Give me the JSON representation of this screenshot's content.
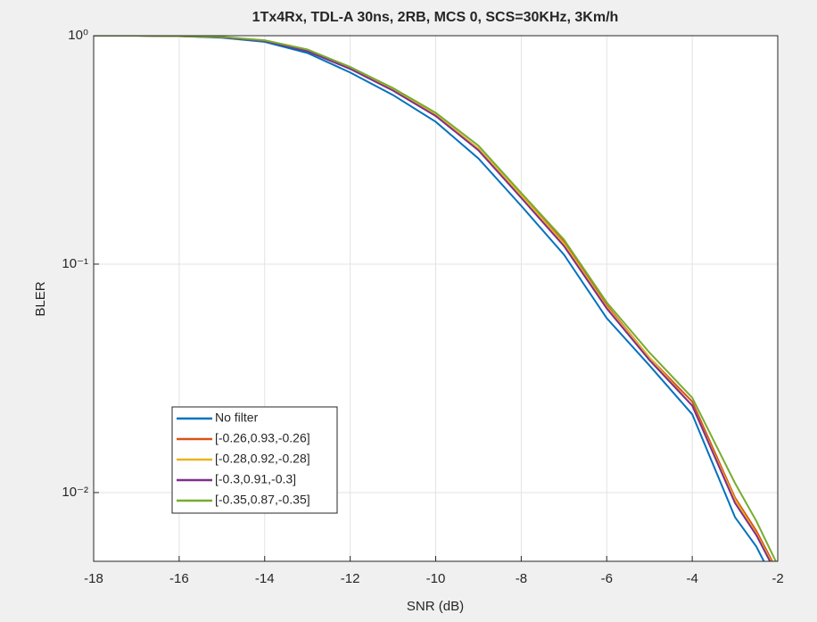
{
  "chart_data": {
    "type": "line",
    "title": "1Tx4Rx, TDL-A 30ns, 2RB, MCS 0, SCS=30KHz, 3Km/h",
    "xlabel": "SNR (dB)",
    "ylabel": "BLER",
    "x": [
      -18,
      -17,
      -16,
      -15,
      -14,
      -13,
      -12,
      -11,
      -10,
      -9,
      -8,
      -7,
      -6,
      -5,
      -4,
      -3,
      -2.5,
      -2
    ],
    "series": [
      {
        "name": "No filter",
        "color": "#0072BD",
        "values": [
          1,
          1,
          0.995,
          0.98,
          0.94,
          0.84,
          0.69,
          0.55,
          0.42,
          0.29,
          0.18,
          0.11,
          0.058,
          0.036,
          0.022,
          0.0078,
          0.0058,
          0.0038
        ]
      },
      {
        "name": "[-0.26,0.93,-0.26]",
        "color": "#D95319",
        "values": [
          1,
          1,
          0.996,
          0.985,
          0.95,
          0.86,
          0.72,
          0.58,
          0.45,
          0.32,
          0.2,
          0.125,
          0.066,
          0.039,
          0.025,
          0.0095,
          0.0068,
          0.0045
        ]
      },
      {
        "name": "[-0.28,0.92,-0.28]",
        "color": "#EDB120",
        "values": [
          1,
          1,
          0.996,
          0.985,
          0.95,
          0.86,
          0.72,
          0.58,
          0.45,
          0.32,
          0.2,
          0.123,
          0.065,
          0.039,
          0.024,
          0.0093,
          0.0066,
          0.0044
        ]
      },
      {
        "name": "[-0.3,0.91,-0.3]",
        "color": "#7E2F8E",
        "values": [
          1,
          1,
          0.996,
          0.984,
          0.948,
          0.855,
          0.715,
          0.575,
          0.445,
          0.315,
          0.195,
          0.12,
          0.064,
          0.038,
          0.024,
          0.009,
          0.0065,
          0.0043
        ]
      },
      {
        "name": "[-0.35,0.87,-0.35]",
        "color": "#77AC30",
        "values": [
          1,
          1,
          0.997,
          0.988,
          0.955,
          0.87,
          0.73,
          0.59,
          0.46,
          0.33,
          0.205,
          0.128,
          0.068,
          0.041,
          0.026,
          0.011,
          0.0075,
          0.0048
        ]
      }
    ],
    "xlim": [
      -18,
      -2
    ],
    "xticks": [
      -18,
      -16,
      -14,
      -12,
      -10,
      -8,
      -6,
      -4,
      -2
    ],
    "ylim": [
      0.005,
      1
    ],
    "yticks": [
      {
        "value": 0.01,
        "label": "10⁻²"
      },
      {
        "value": 0.1,
        "label": "10⁻¹"
      },
      {
        "value": 1,
        "label": "10⁰"
      }
    ],
    "yscale": "log",
    "grid": true,
    "legend": "southwest"
  }
}
